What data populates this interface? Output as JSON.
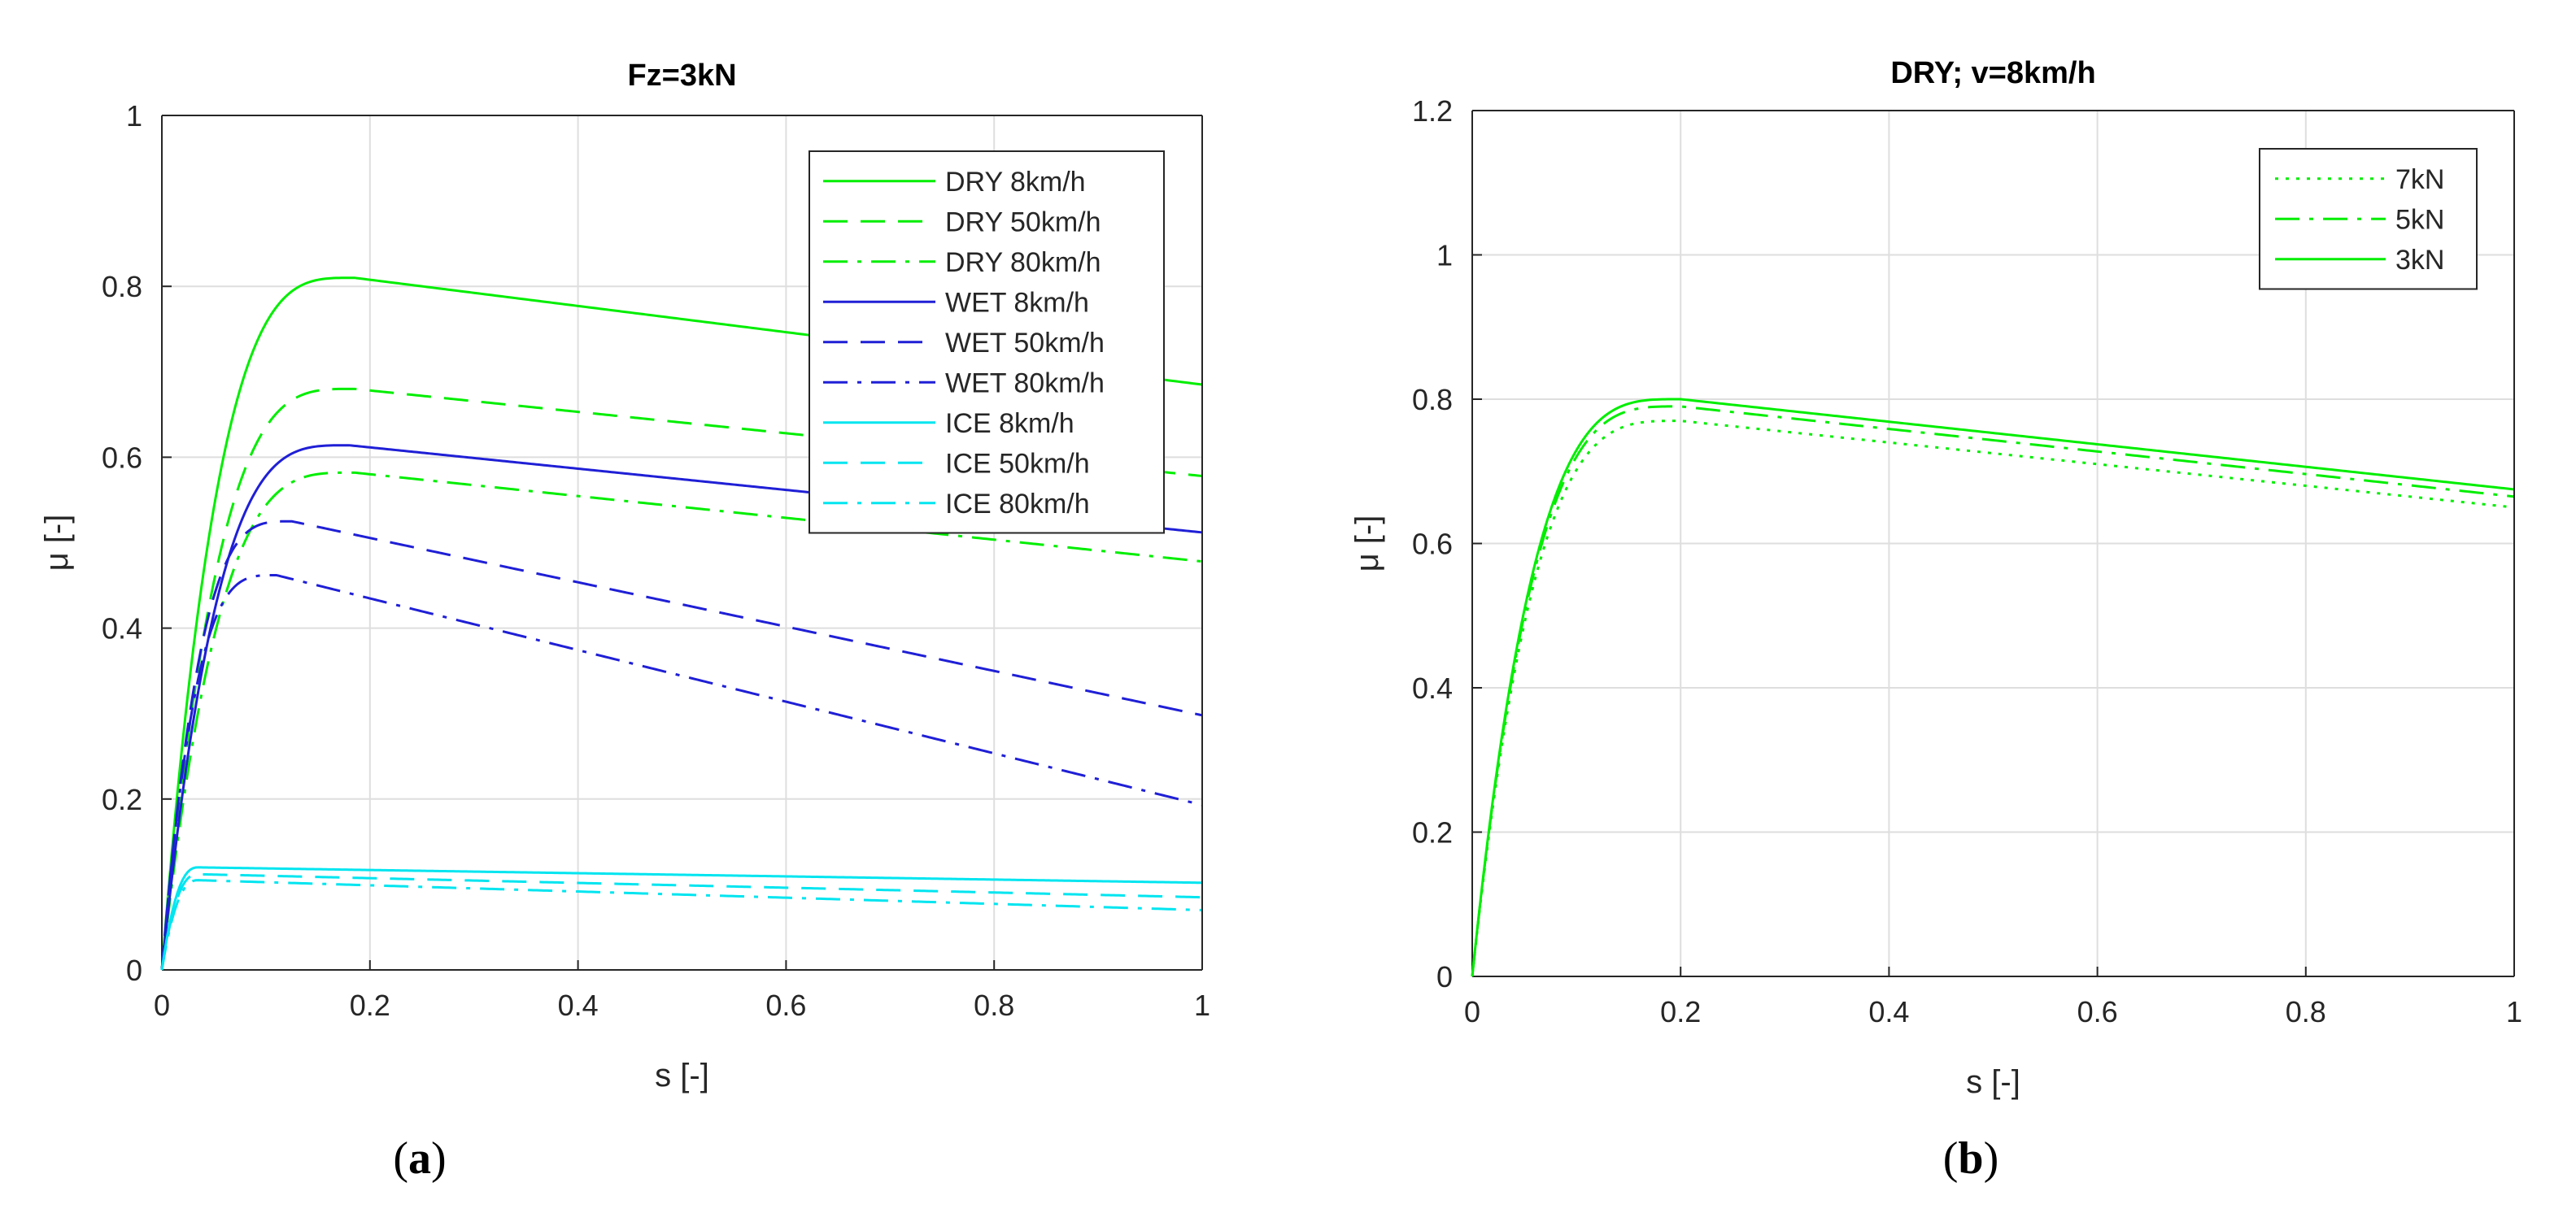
{
  "figure": {
    "panels": [
      {
        "label_open": "(",
        "label_letter": "a",
        "label_close": ")"
      },
      {
        "label_open": "(",
        "label_letter": "b",
        "label_close": ")"
      }
    ]
  },
  "chart_data": [
    {
      "type": "line",
      "title": "Fz=3kN",
      "xlabel": "s [-]",
      "ylabel": "μ [-]",
      "xlim": [
        0,
        1
      ],
      "ylim": [
        0,
        1
      ],
      "xticks": [
        0,
        0.2,
        0.4,
        0.6,
        0.8,
        1
      ],
      "xtick_labels": [
        "0",
        "0.2",
        "0.4",
        "0.6",
        "0.8",
        "1"
      ],
      "yticks": [
        0,
        0.2,
        0.4,
        0.6,
        0.8,
        1
      ],
      "ytick_labels": [
        "0",
        "0.2",
        "0.4",
        "0.6",
        "0.8",
        "1"
      ],
      "grid": true,
      "legend_position": "top-right",
      "series": [
        {
          "name": "DRY 8km/h",
          "color": "#00ee00",
          "style": "solid",
          "peak_s": 0.185,
          "peak_mu": 0.81,
          "end_mu": 0.685,
          "rise": 3.5
        },
        {
          "name": "DRY 50km/h",
          "color": "#00ee00",
          "style": "dashed",
          "peak_s": 0.185,
          "peak_mu": 0.68,
          "end_mu": 0.578,
          "rise": 3.5
        },
        {
          "name": "DRY 80km/h",
          "color": "#00ee00",
          "style": "dashdot",
          "peak_s": 0.185,
          "peak_mu": 0.582,
          "end_mu": 0.478,
          "rise": 3.5
        },
        {
          "name": "WET 8km/h",
          "color": "#1f1fd6",
          "style": "solid",
          "peak_s": 0.18,
          "peak_mu": 0.614,
          "end_mu": 0.512,
          "rise": 3.5
        },
        {
          "name": "WET 50km/h",
          "color": "#1f1fd6",
          "style": "dashed",
          "peak_s": 0.125,
          "peak_mu": 0.525,
          "end_mu": 0.298,
          "rise": 3.5
        },
        {
          "name": "WET 80km/h",
          "color": "#1f1fd6",
          "style": "dashdot",
          "peak_s": 0.11,
          "peak_mu": 0.462,
          "end_mu": 0.193,
          "rise": 3.5
        },
        {
          "name": "ICE 8km/h",
          "color": "#00e5f0",
          "style": "solid",
          "peak_s": 0.035,
          "peak_mu": 0.12,
          "end_mu": 0.102,
          "rise": 2.5
        },
        {
          "name": "ICE 50km/h",
          "color": "#00e5f0",
          "style": "dashed",
          "peak_s": 0.035,
          "peak_mu": 0.112,
          "end_mu": 0.085,
          "rise": 2.5
        },
        {
          "name": "ICE 80km/h",
          "color": "#00e5f0",
          "style": "dashdot",
          "peak_s": 0.035,
          "peak_mu": 0.105,
          "end_mu": 0.07,
          "rise": 2.5
        }
      ]
    },
    {
      "type": "line",
      "title": "DRY; v=8km/h",
      "xlabel": "s [-]",
      "ylabel": "μ [-]",
      "xlim": [
        0,
        1
      ],
      "ylim": [
        0,
        1.2
      ],
      "xticks": [
        0,
        0.2,
        0.4,
        0.6,
        0.8,
        1
      ],
      "xtick_labels": [
        "0",
        "0.2",
        "0.4",
        "0.6",
        "0.8",
        "1"
      ],
      "yticks": [
        0,
        0.2,
        0.4,
        0.6,
        0.8,
        1,
        1.2
      ],
      "ytick_labels": [
        "0",
        "0.2",
        "0.4",
        "0.6",
        "0.8",
        "1",
        "1.2"
      ],
      "grid": true,
      "legend_position": "top-right",
      "series": [
        {
          "name": "7kN",
          "color": "#00ee00",
          "style": "dotted",
          "peak_s": 0.2,
          "peak_mu": 0.77,
          "end_mu": 0.65,
          "rise": 3.5
        },
        {
          "name": "5kN",
          "color": "#00ee00",
          "style": "dashdot",
          "peak_s": 0.2,
          "peak_mu": 0.79,
          "end_mu": 0.665,
          "rise": 3.5
        },
        {
          "name": "3kN",
          "color": "#00ee00",
          "style": "solid",
          "peak_s": 0.2,
          "peak_mu": 0.8,
          "end_mu": 0.675,
          "rise": 3.5
        }
      ]
    }
  ]
}
